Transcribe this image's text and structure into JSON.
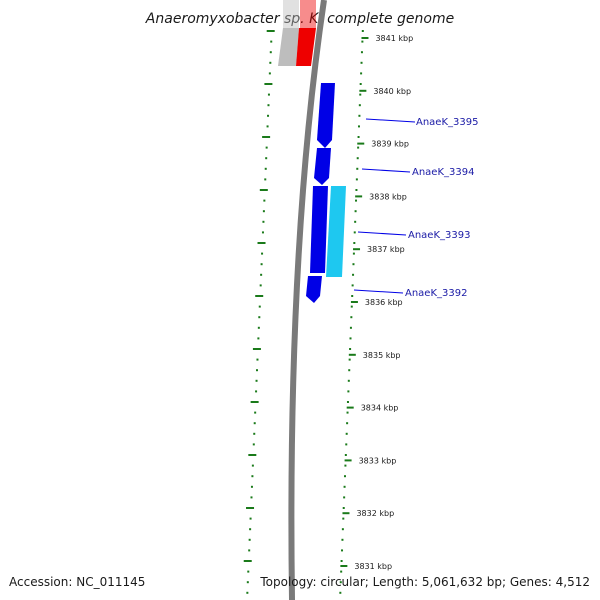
{
  "title": "Anaeromyxobacter sp. K, complete genome",
  "footer": {
    "accession": "Accession: NC_011145",
    "topology": "Topology: circular; Length: 5,061,632 bp; Genes: 4,512"
  },
  "ticks": [
    {
      "kbp": 3841,
      "label": "3841 kbp"
    },
    {
      "kbp": 3840,
      "label": "3840 kbp"
    },
    {
      "kbp": 3839,
      "label": "3839 kbp"
    },
    {
      "kbp": 3838,
      "label": "3838 kbp"
    },
    {
      "kbp": 3837,
      "label": "3837 kbp"
    },
    {
      "kbp": 3836,
      "label": "3836 kbp"
    },
    {
      "kbp": 3835,
      "label": "3835 kbp"
    },
    {
      "kbp": 3834,
      "label": "3834 kbp"
    },
    {
      "kbp": 3833,
      "label": "3833 kbp"
    },
    {
      "kbp": 3832,
      "label": "3832 kbp"
    },
    {
      "kbp": 3831,
      "label": "3831 kbp"
    }
  ],
  "genes": [
    {
      "name": "AnaeK_3395",
      "color": "#0000e6"
    },
    {
      "name": "AnaeK_3394",
      "color": "#0000e6"
    },
    {
      "name": "AnaeK_3393",
      "color": "#0000e6"
    },
    {
      "name": "AnaeK_3392",
      "color": "#0000e6"
    }
  ],
  "features": {
    "rrna_color": "#ee0000",
    "grey_feature_color": "#bdbdbd",
    "highlight_color": "#1ec8f0",
    "backbone_color": "#7a7a7a",
    "ruler_color": "#1a7a1a"
  }
}
